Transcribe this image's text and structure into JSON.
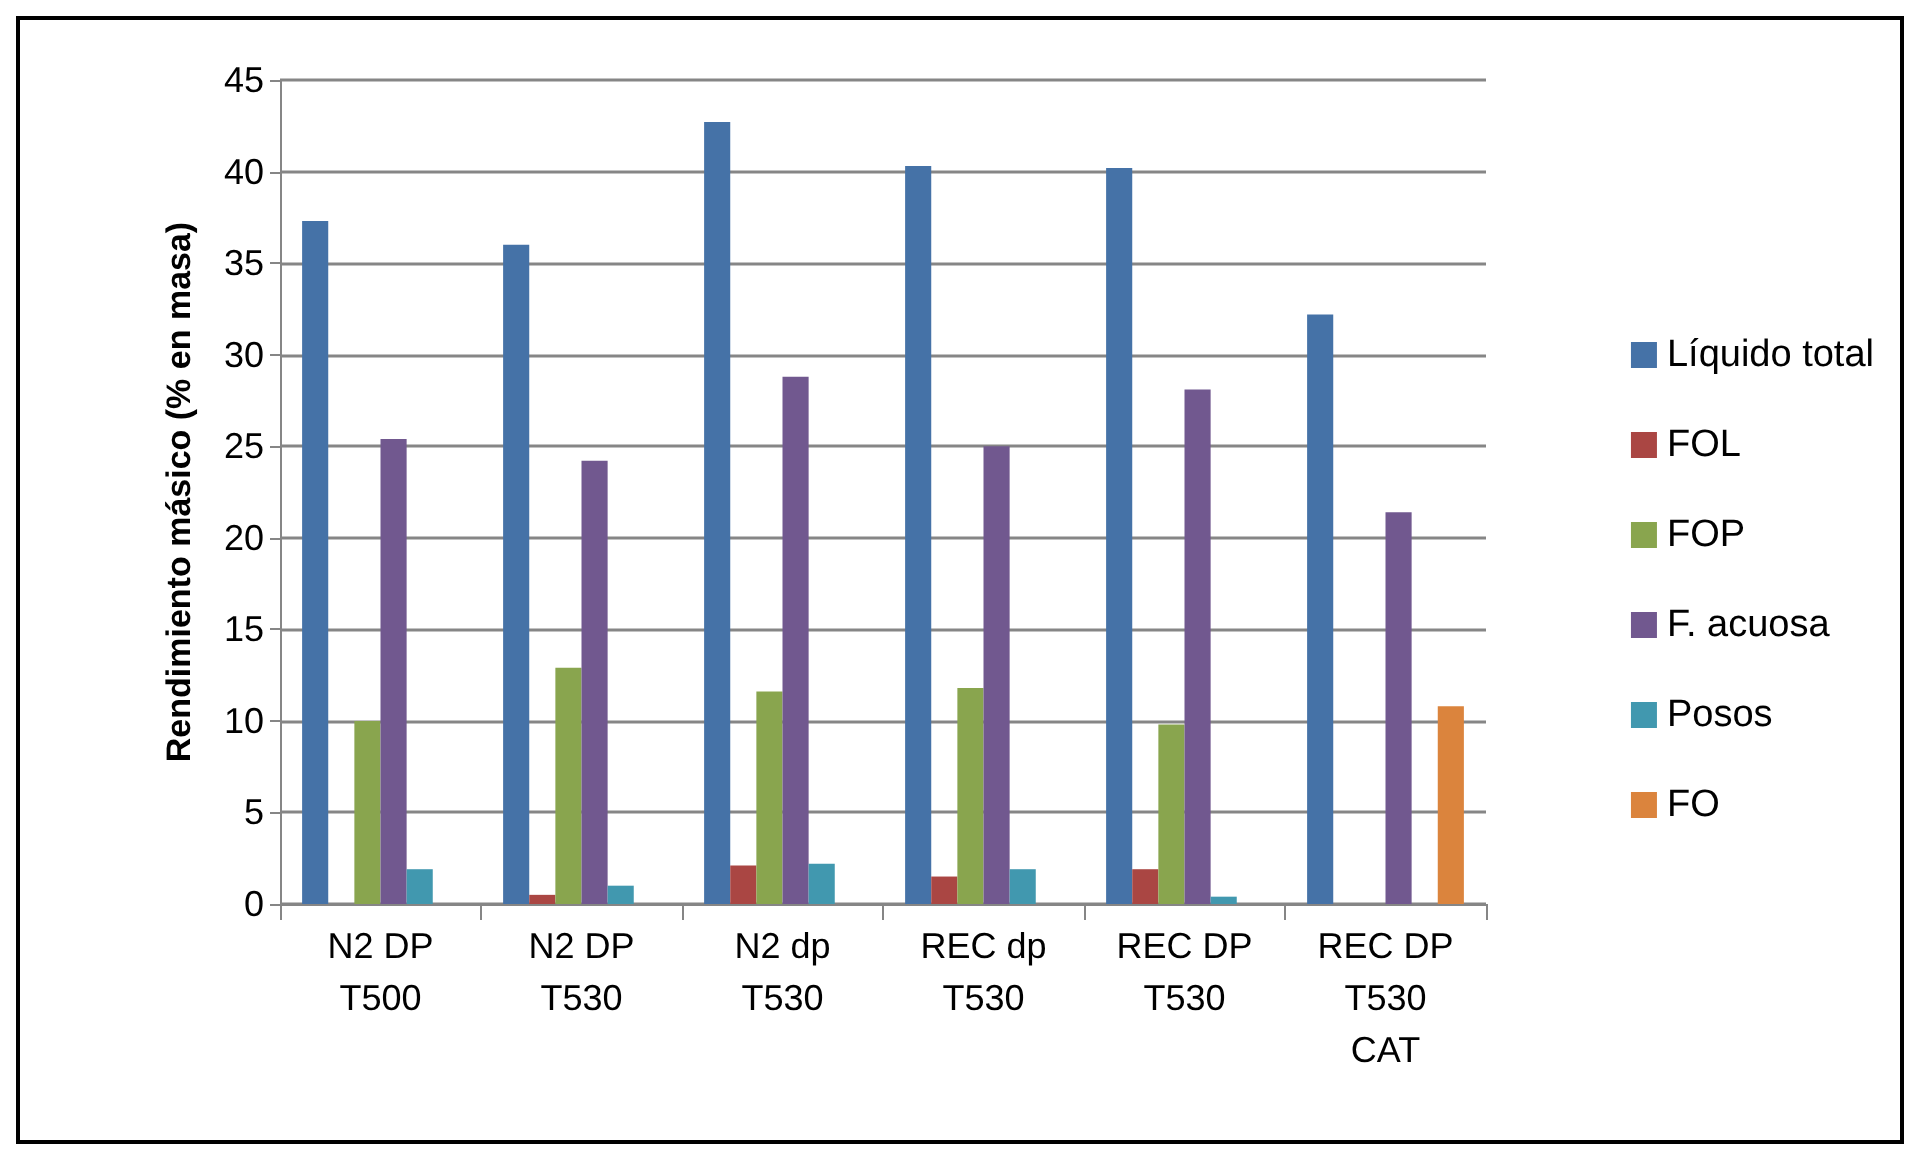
{
  "chart_data": {
    "type": "bar",
    "ylabel": "Rendimiento másico (% en masa)",
    "categories": [
      "N2 DP\nT500",
      "N2 DP\nT530",
      "N2 dp\nT530",
      "REC dp\nT530",
      "REC DP\nT530",
      "REC DP\nT530\nCAT"
    ],
    "series": [
      {
        "name": "Líquido total",
        "color": "#4572a7",
        "values": [
          37.3,
          36.0,
          42.7,
          40.3,
          40.2,
          32.2
        ]
      },
      {
        "name": "FOL",
        "color": "#aa4643",
        "values": [
          null,
          0.5,
          2.1,
          1.5,
          1.9,
          null
        ]
      },
      {
        "name": "FOP",
        "color": "#89a54e",
        "values": [
          10.0,
          12.9,
          11.6,
          11.8,
          9.8,
          null
        ]
      },
      {
        "name": "F. acuosa",
        "color": "#71588f",
        "values": [
          25.4,
          24.2,
          28.8,
          25.0,
          28.1,
          21.4
        ]
      },
      {
        "name": "Posos",
        "color": "#4198af",
        "values": [
          1.9,
          1.0,
          2.2,
          1.9,
          0.4,
          null
        ]
      },
      {
        "name": "FO",
        "color": "#db843d",
        "values": [
          null,
          null,
          null,
          null,
          null,
          10.8
        ]
      }
    ],
    "ylim": [
      0,
      45
    ],
    "yticks": [
      0,
      5,
      10,
      15,
      20,
      25,
      30,
      35,
      40,
      45
    ],
    "grid": "y",
    "legend": "right"
  }
}
